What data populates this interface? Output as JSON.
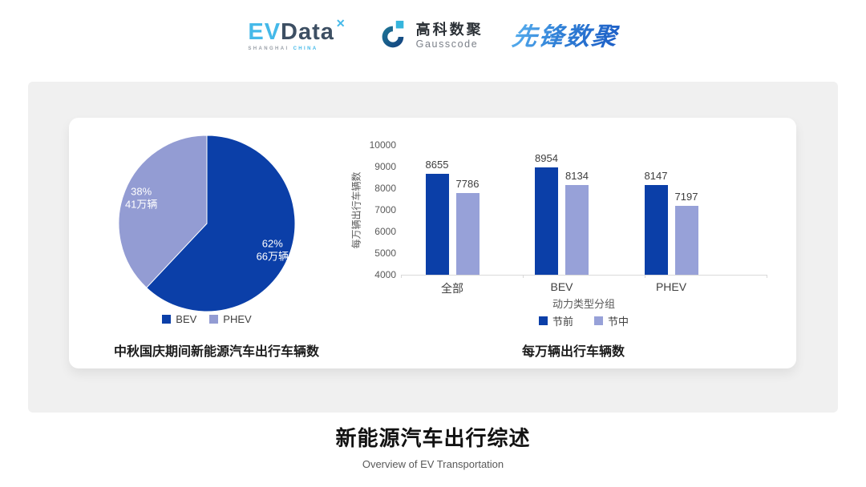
{
  "header": {
    "evdata": {
      "ev": "EV",
      "data": "Data",
      "spark": "✕",
      "sub_left": "SHANGHAI",
      "sub_right": "CHINA"
    },
    "gausscode": {
      "cn": "高科数聚",
      "en": "Gausscode"
    },
    "xianfeng": "先锋数聚"
  },
  "chart_data": [
    {
      "type": "pie",
      "title": "中秋国庆期间新能源汽车出行车辆数",
      "start_angle": "top",
      "direction": "clockwise",
      "legend_position": "bottom",
      "slices": [
        {
          "label": "BEV",
          "percent": 62,
          "value": 66,
          "value_label": "66万辆",
          "color": "#0b3fa8"
        },
        {
          "label": "PHEV",
          "percent": 38,
          "value": 41,
          "value_label": "41万辆",
          "color": "#939cd3"
        }
      ]
    },
    {
      "type": "bar",
      "title": "每万辆出行车辆数",
      "categories": [
        "全部",
        "BEV",
        "PHEV"
      ],
      "series": [
        {
          "name": "节前",
          "color": "#0b3fa8",
          "values": [
            8655,
            8954,
            8147
          ]
        },
        {
          "name": "节中",
          "color": "#97a1d8",
          "values": [
            7786,
            8134,
            7197
          ]
        }
      ],
      "ylabel": "每万辆出行车辆数",
      "xlabel": "动力类型分组",
      "ylim": [
        4000,
        10000
      ],
      "ytick_step": 1000,
      "grid": false,
      "legend_position": "bottom"
    }
  ],
  "footer": {
    "title": "新能源汽车出行综述",
    "subtitle": "Overview of EV Transportation"
  },
  "colors": {
    "primary_dark_blue": "#0b3fa8",
    "periwinkle_light": "#97a1d8",
    "pie_phev": "#939cd3",
    "evdata_blue": "#45b9e9",
    "evdata_dark": "#3d4f63",
    "gausscode_teal": "#1b6d91",
    "gausscode_square": "#35b5dd",
    "xianfeng_blue": "#2e7ed2",
    "panel_gray": "#f0f0f0",
    "axis_gray": "#d9d9d9"
  }
}
